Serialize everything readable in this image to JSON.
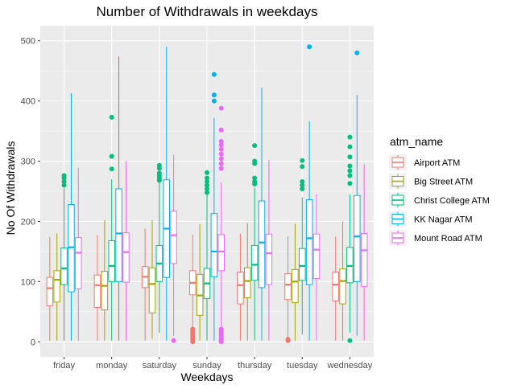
{
  "chart_data": {
    "type": "boxplot",
    "title": "Number of Withdrawals in weekdays",
    "xlabel": "Weekdays",
    "ylabel": "No Of Withdrawals",
    "ylim": [
      -25,
      525
    ],
    "yticks": [
      0,
      100,
      200,
      300,
      400,
      500
    ],
    "grid": true,
    "legend_position": "right",
    "legend_title": "atm_name",
    "categories": [
      "friday",
      "monday",
      "saturday",
      "sunday",
      "thursday",
      "tuesday",
      "wednesday"
    ],
    "series": [
      {
        "name": "Airport ATM",
        "color": "#F8766D",
        "boxes": [
          {
            "min": 2,
            "q1": 60,
            "median": 89,
            "q3": 107,
            "max": 174,
            "outliers": []
          },
          {
            "min": 2,
            "q1": 57,
            "median": 94,
            "q3": 111,
            "max": 177,
            "outliers": []
          },
          {
            "min": 2,
            "q1": 90,
            "median": 108,
            "q3": 125,
            "max": 188,
            "outliers": []
          },
          {
            "min": 22,
            "q1": 78,
            "median": 98,
            "q3": 118,
            "max": 178,
            "outliers": [
              0,
              3,
              6,
              9,
              12,
              15,
              18,
              21
            ]
          },
          {
            "min": 2,
            "q1": 63,
            "median": 94,
            "q3": 116,
            "max": 180,
            "outliers": []
          },
          {
            "min": 5,
            "q1": 70,
            "median": 95,
            "q3": 113,
            "max": 175,
            "outliers": [
              2,
              4
            ]
          },
          {
            "min": 2,
            "q1": 68,
            "median": 95,
            "q3": 116,
            "max": 175,
            "outliers": []
          }
        ]
      },
      {
        "name": "Big Street ATM",
        "color": "#A3A500",
        "boxes": [
          {
            "min": 2,
            "q1": 66,
            "median": 103,
            "q3": 118,
            "max": 180,
            "outliers": []
          },
          {
            "min": 2,
            "q1": 53,
            "median": 93,
            "q3": 117,
            "max": 202,
            "outliers": []
          },
          {
            "min": 5,
            "q1": 48,
            "median": 96,
            "q3": 123,
            "max": 202,
            "outliers": []
          },
          {
            "min": 2,
            "q1": 44,
            "median": 77,
            "q3": 112,
            "max": 195,
            "outliers": []
          },
          {
            "min": 2,
            "q1": 73,
            "median": 101,
            "q3": 123,
            "max": 197,
            "outliers": []
          },
          {
            "min": 2,
            "q1": 65,
            "median": 100,
            "q3": 120,
            "max": 196,
            "outliers": []
          },
          {
            "min": 2,
            "q1": 63,
            "median": 101,
            "q3": 121,
            "max": 200,
            "outliers": []
          }
        ]
      },
      {
        "name": "Christ College ATM",
        "color": "#00BF7D",
        "boxes": [
          {
            "min": 2,
            "q1": 95,
            "median": 122,
            "q3": 156,
            "max": 255,
            "outliers": [
              260,
              266,
              272,
              276
            ]
          },
          {
            "min": 2,
            "q1": 100,
            "median": 126,
            "q3": 168,
            "max": 270,
            "outliers": [
              287,
              308,
              373
            ]
          },
          {
            "min": 15,
            "q1": 100,
            "median": 130,
            "q3": 160,
            "max": 265,
            "outliers": [
              268,
              272,
              276,
              280,
              288,
              293
            ]
          },
          {
            "min": 2,
            "q1": 72,
            "median": 97,
            "q3": 122,
            "max": 245,
            "outliers": [
              248,
              254,
              260,
              266,
              272,
              281
            ]
          },
          {
            "min": 2,
            "q1": 102,
            "median": 128,
            "q3": 160,
            "max": 256,
            "outliers": [
              262,
              266,
              272,
              296,
              300,
              326
            ]
          },
          {
            "min": 12,
            "q1": 102,
            "median": 126,
            "q3": 155,
            "max": 240,
            "outliers": [
              254,
              260,
              266,
              291,
              301
            ]
          },
          {
            "min": 15,
            "q1": 98,
            "median": 126,
            "q3": 157,
            "max": 245,
            "outliers": [
              2,
              263,
              276,
              284,
              292,
              307,
              324,
              340
            ]
          }
        ]
      },
      {
        "name": "KK Nagar ATM",
        "color": "#00B0F6",
        "boxes": [
          {
            "min": 2,
            "q1": 83,
            "median": 157,
            "q3": 228,
            "max": 413,
            "outliers": []
          },
          {
            "min": 2,
            "q1": 100,
            "median": 180,
            "q3": 254,
            "max": 474,
            "outliers": []
          },
          {
            "min": 2,
            "q1": 107,
            "median": 188,
            "q3": 269,
            "max": 490,
            "outliers": []
          },
          {
            "min": 2,
            "q1": 108,
            "median": 150,
            "q3": 213,
            "max": 372,
            "outliers": [
              400,
              410,
              444
            ]
          },
          {
            "min": 2,
            "q1": 90,
            "median": 165,
            "q3": 234,
            "max": 422,
            "outliers": []
          },
          {
            "min": 2,
            "q1": 95,
            "median": 172,
            "q3": 236,
            "max": 366,
            "outliers": [
              490
            ]
          },
          {
            "min": 10,
            "q1": 100,
            "median": 175,
            "q3": 243,
            "max": 410,
            "outliers": [
              480
            ]
          }
        ]
      },
      {
        "name": "Mount Road ATM",
        "color": "#E76BF3",
        "boxes": [
          {
            "min": 2,
            "q1": 88,
            "median": 148,
            "q3": 173,
            "max": 289,
            "outliers": []
          },
          {
            "min": 2,
            "q1": 99,
            "median": 149,
            "q3": 181,
            "max": 300,
            "outliers": []
          },
          {
            "min": 10,
            "q1": 130,
            "median": 177,
            "q3": 217,
            "max": 310,
            "outliers": [
              2
            ]
          },
          {
            "min": 23,
            "q1": 118,
            "median": 150,
            "q3": 178,
            "max": 265,
            "outliers": [
              0,
              3,
              6,
              9,
              12,
              15,
              18,
              21,
              288,
              296,
              304,
              312,
              320,
              327,
              333,
              352,
              388
            ]
          },
          {
            "min": 2,
            "q1": 95,
            "median": 147,
            "q3": 179,
            "max": 302,
            "outliers": []
          },
          {
            "min": 2,
            "q1": 105,
            "median": 153,
            "q3": 179,
            "max": 245,
            "outliers": []
          },
          {
            "min": 2,
            "q1": 92,
            "median": 152,
            "q3": 180,
            "max": 295,
            "outliers": []
          }
        ]
      }
    ]
  }
}
